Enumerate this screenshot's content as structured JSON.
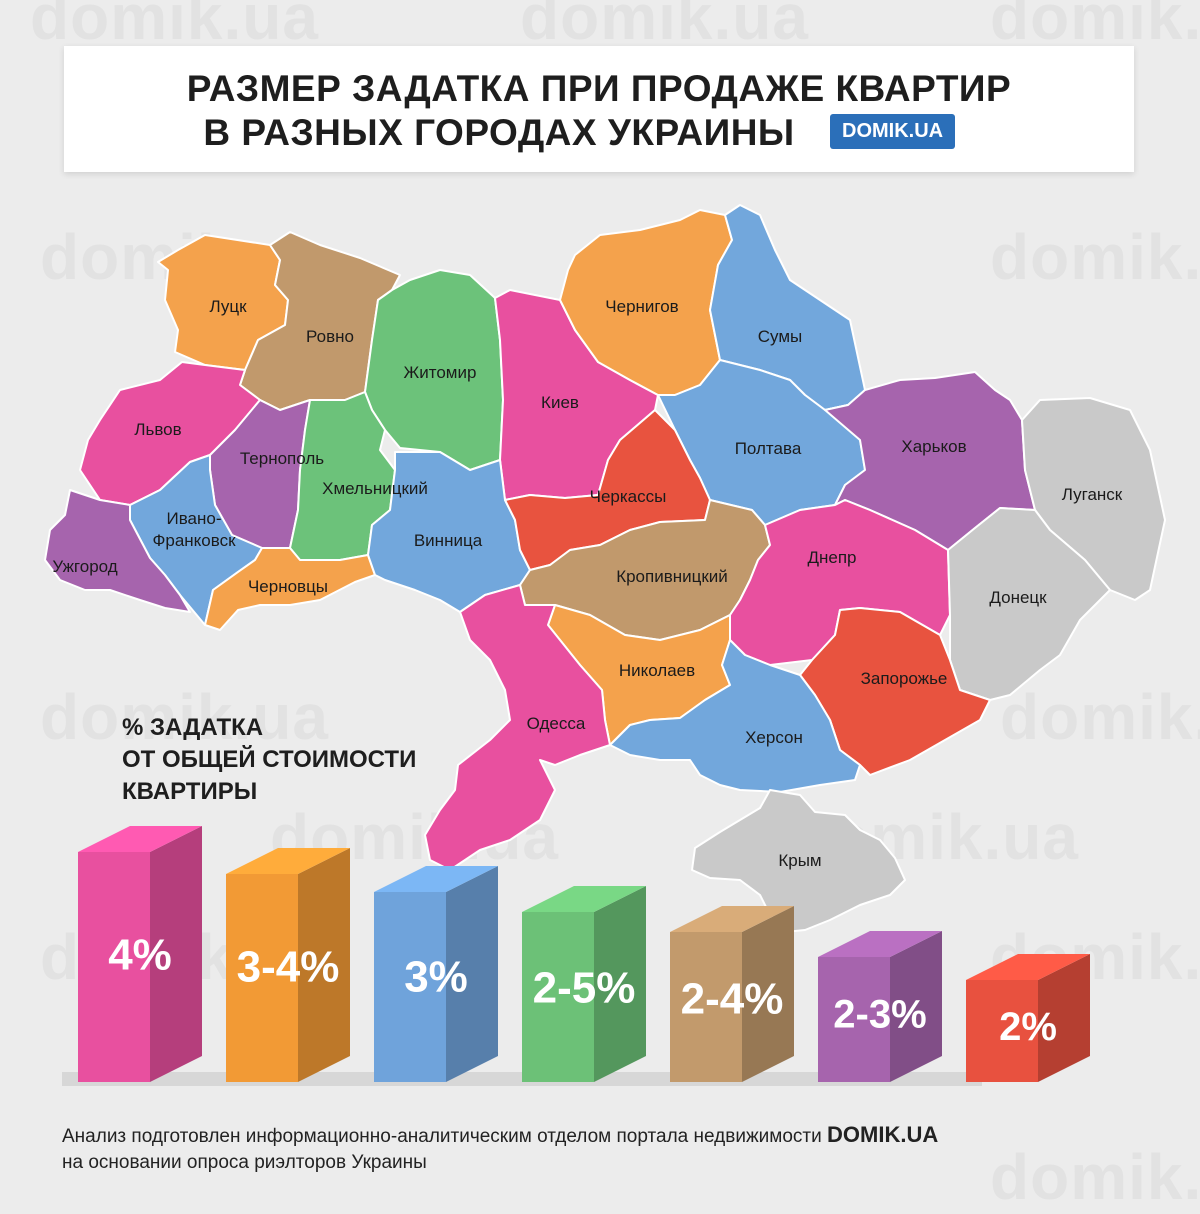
{
  "watermark": "domik.ua",
  "title": {
    "line1": "РАЗМЕР ЗАДАТКА ПРИ ПРОДАЖЕ КВАРТИР",
    "line2": "В РАЗНЫХ ГОРОДАХ УКРАИНЫ",
    "badge": "DOMIK.UA"
  },
  "legend": {
    "line1": "% ЗАДАТКА",
    "line2": "ОТ ОБЩЕЙ СТОИМОСТИ",
    "line3": "КВАРТИРЫ",
    "bars": [
      {
        "label": "4%",
        "color": "#e8509f"
      },
      {
        "label": "3-4%",
        "color": "#f29a35"
      },
      {
        "label": "3%",
        "color": "#6fa3db"
      },
      {
        "label": "2-5%",
        "color": "#6cc177"
      },
      {
        "label": "2-4%",
        "color": "#c29a6c"
      },
      {
        "label": "2-3%",
        "color": "#a664ad"
      },
      {
        "label": "2%",
        "color": "#e8513f"
      }
    ]
  },
  "regions": [
    {
      "name": "Луцк",
      "group": "3-4%"
    },
    {
      "name": "Ровно",
      "group": "2-4%"
    },
    {
      "name": "Житомир",
      "group": "2-5%"
    },
    {
      "name": "Киев",
      "group": "4%"
    },
    {
      "name": "Чернигов",
      "group": "3-4%"
    },
    {
      "name": "Сумы",
      "group": "3%"
    },
    {
      "name": "Львов",
      "group": "4%"
    },
    {
      "name": "Тернополь",
      "group": "2-3%"
    },
    {
      "name": "Хмельницкий",
      "group": "2-5%"
    },
    {
      "name": "Полтава",
      "group": "3%"
    },
    {
      "name": "Харьков",
      "group": "2-3%"
    },
    {
      "name": "Луганск",
      "group": "no data"
    },
    {
      "name": "Ивано-Франковск",
      "group": "3%"
    },
    {
      "name": "Ужгород",
      "group": "2-3%"
    },
    {
      "name": "Черновцы",
      "group": "3-4%"
    },
    {
      "name": "Винница",
      "group": "3%"
    },
    {
      "name": "Черкассы",
      "group": "2%"
    },
    {
      "name": "Кропивницкий",
      "group": "2-4%"
    },
    {
      "name": "Днепр",
      "group": "4%"
    },
    {
      "name": "Донецк",
      "group": "no data"
    },
    {
      "name": "Николаев",
      "group": "3-4%"
    },
    {
      "name": "Одесса",
      "group": "4%"
    },
    {
      "name": "Запорожье",
      "group": "2%"
    },
    {
      "name": "Херсон",
      "group": "3%"
    },
    {
      "name": "Крым",
      "group": "no data"
    }
  ],
  "colors": {
    "4%": "#e8509f",
    "3-4%": "#f4a24c",
    "3%": "#72a7dc",
    "2-5%": "#6cc27a",
    "2-4%": "#c1996c",
    "2-3%": "#a664ad",
    "2%": "#e8533f",
    "no data": "#c9c9c9"
  },
  "footer": {
    "line1": "Анализ подготовлен информационно-аналитическим отделом портала недвижимости",
    "brand": "DOMIK.UA",
    "line2": "на основании опроса риэлторов Украины"
  }
}
